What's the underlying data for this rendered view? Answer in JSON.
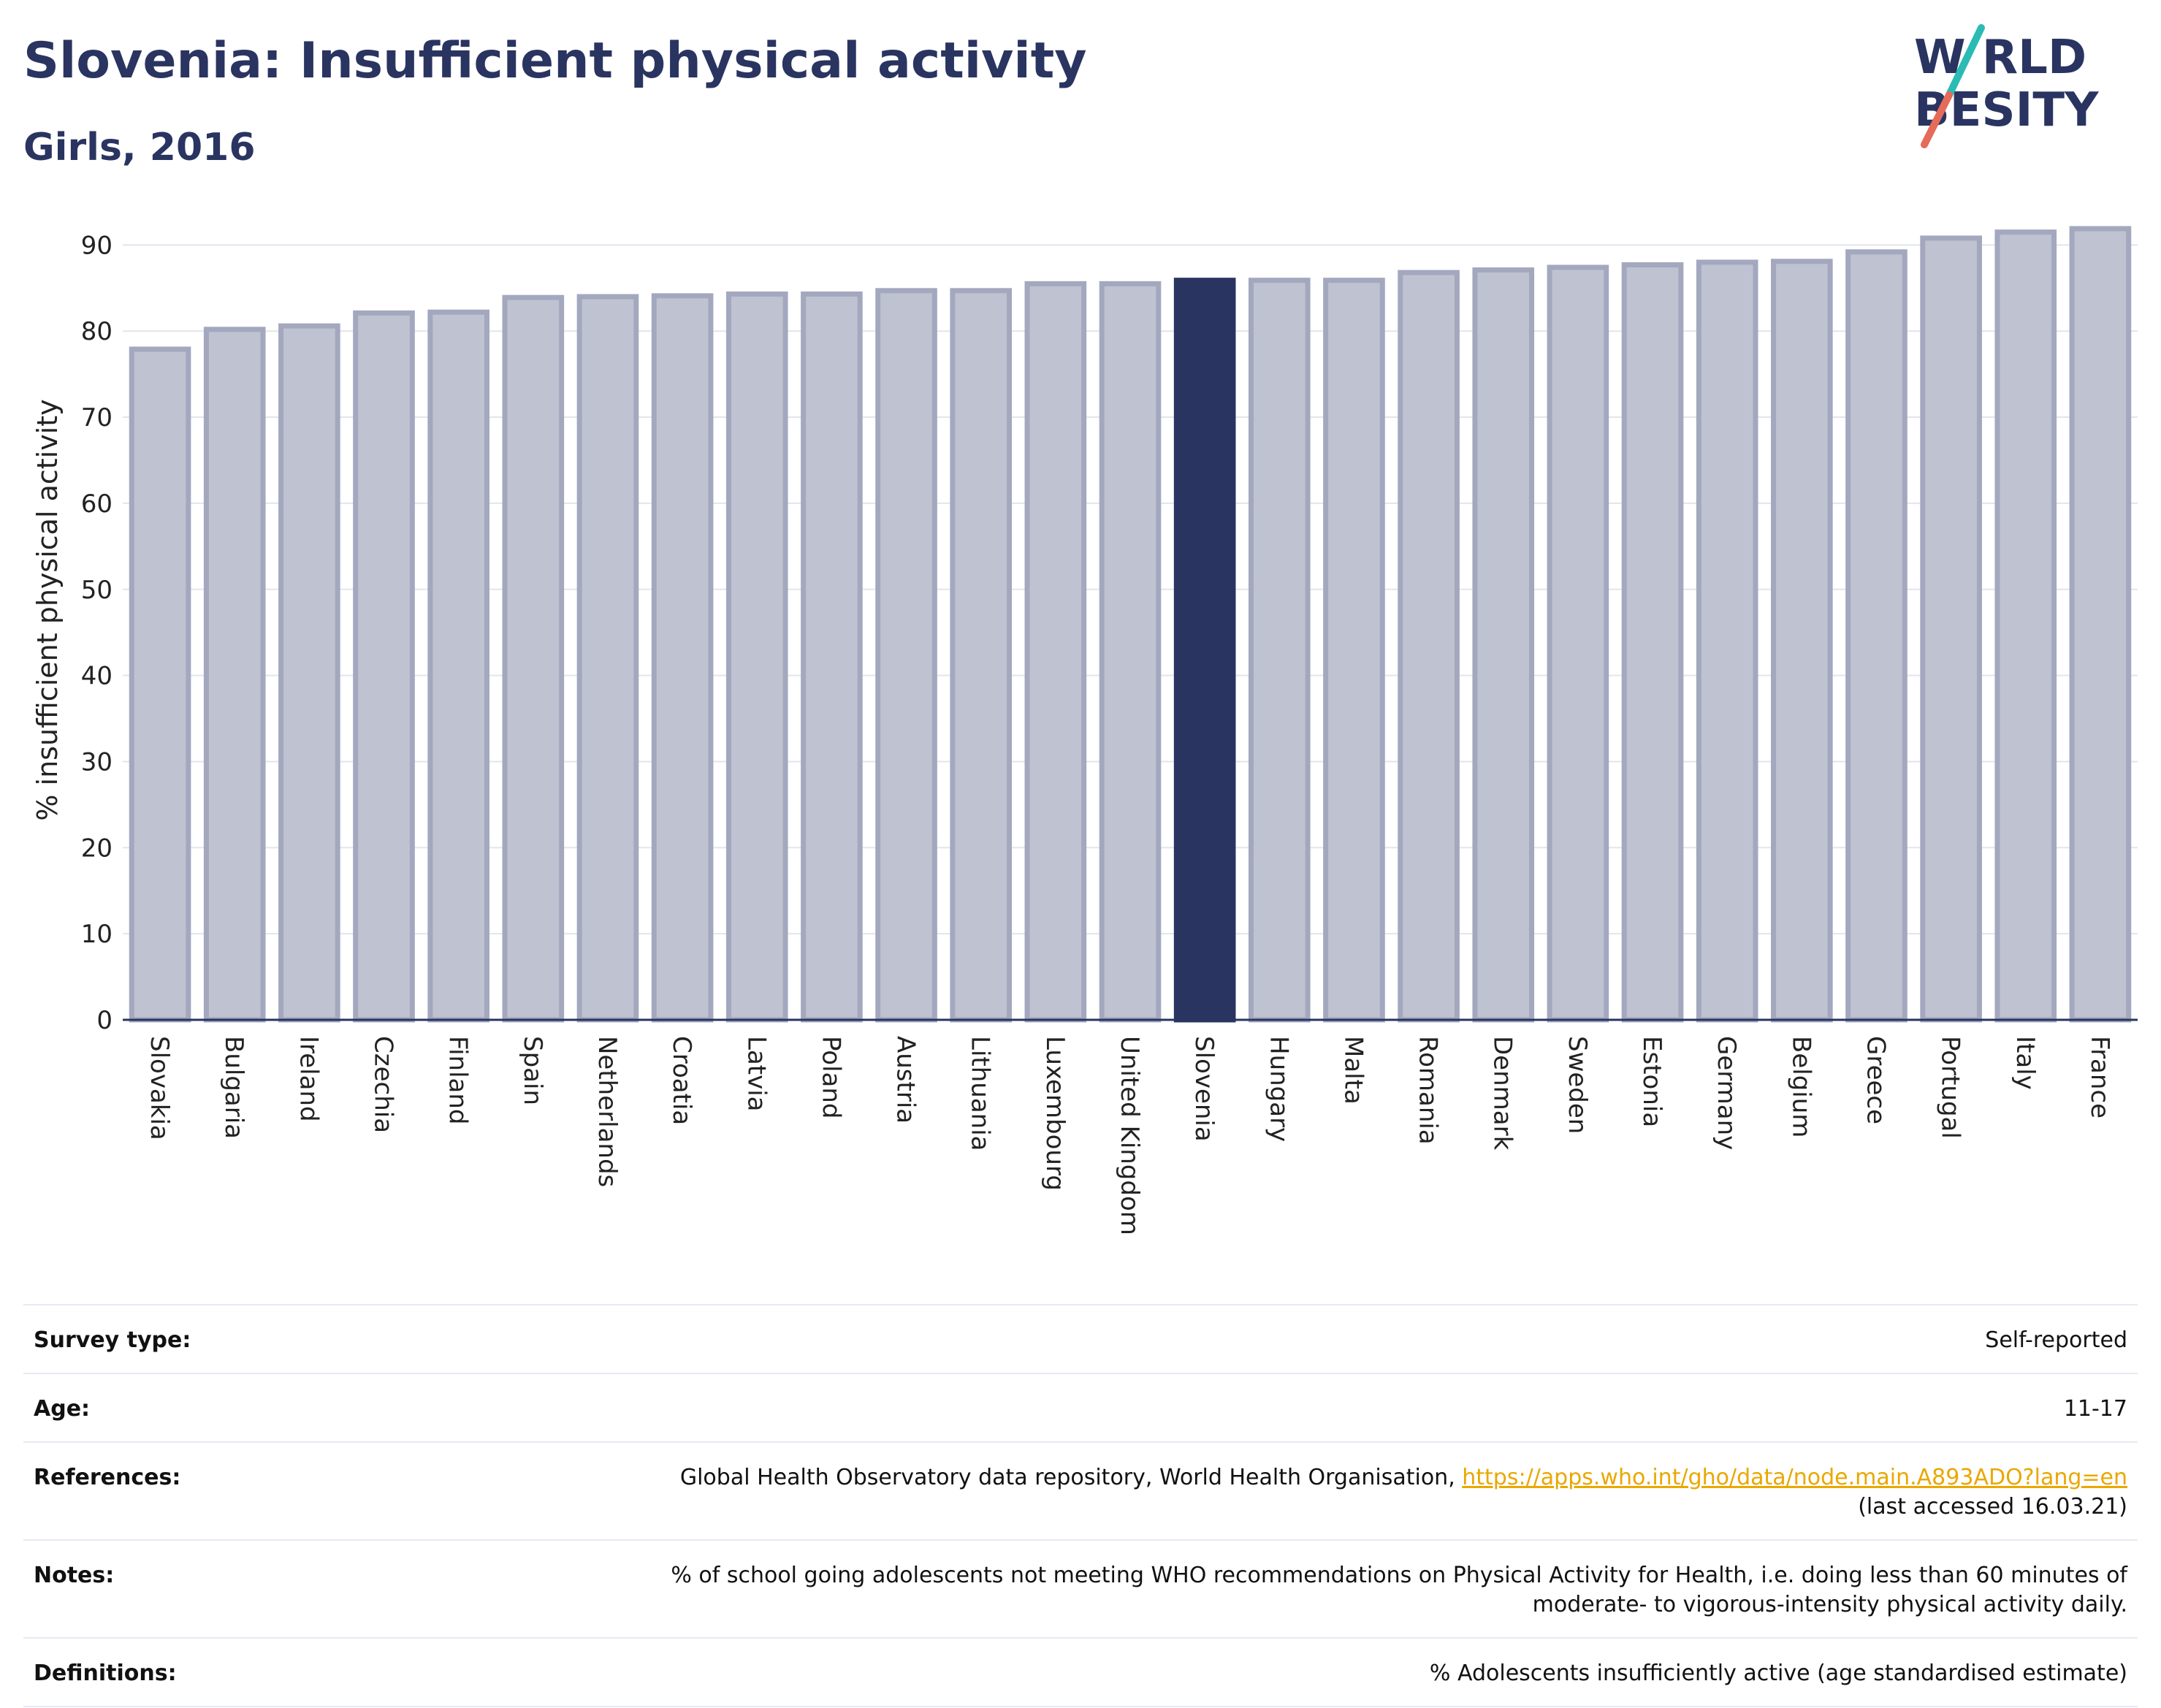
{
  "header": {
    "title": "Slovenia: Insufficient physical activity",
    "subtitle": "Girls, 2016"
  },
  "logo": {
    "line1": "W RLD",
    "line2": " BESITY",
    "slash_colors": [
      "#2bbbb5",
      "#e56b5a"
    ]
  },
  "colors": {
    "bar_default": "#bfc2d0",
    "bar_outline": "#a3a8bf",
    "bar_highlight": "#2a3461",
    "title": "#2a3461",
    "link": "#e9a800"
  },
  "chart_data": {
    "type": "bar",
    "ylabel": "% insufficient physical activity",
    "xlabel": "",
    "ylim": [
      0,
      93
    ],
    "yticks": [
      0,
      10,
      20,
      30,
      40,
      50,
      60,
      70,
      80,
      90
    ],
    "grid": true,
    "highlight": "Slovenia",
    "categories": [
      "Slovakia",
      "Bulgaria",
      "Ireland",
      "Czechia",
      "Finland",
      "Spain",
      "Netherlands",
      "Croatia",
      "Latvia",
      "Poland",
      "Austria",
      "Lithuania",
      "Luxembourg",
      "United Kingdom",
      "Slovenia",
      "Hungary",
      "Malta",
      "Romania",
      "Denmark",
      "Sweden",
      "Estonia",
      "Germany",
      "Belgium",
      "Greece",
      "Portugal",
      "Italy",
      "France"
    ],
    "values": [
      77.9,
      80.2,
      80.6,
      82.1,
      82.2,
      83.9,
      84.0,
      84.1,
      84.3,
      84.3,
      84.7,
      84.7,
      85.5,
      85.5,
      85.9,
      85.9,
      85.9,
      86.8,
      87.1,
      87.4,
      87.7,
      88.0,
      88.1,
      89.2,
      90.8,
      91.5,
      91.9
    ]
  },
  "meta": {
    "survey_type_label": "Survey type:",
    "survey_type_value": "Self-reported",
    "age_label": "Age:",
    "age_value": "11-17",
    "references_label": "References:",
    "references_text": "Global Health Observatory data repository, World Health Organisation, ",
    "references_link": "https://apps.who.int/gho/data/node.main.A893ADO?lang=en",
    "references_accessed": "(last accessed 16.03.21)",
    "notes_label": "Notes:",
    "notes_line1": "% of school going adolescents not meeting WHO recommendations on Physical Activity for Health, i.e. doing less than 60 minutes of",
    "notes_line2": "moderate- to vigorous-intensity physical activity daily.",
    "definitions_label": "Definitions:",
    "definitions_value": "% Adolescents insufficiently active (age standardised estimate)"
  }
}
